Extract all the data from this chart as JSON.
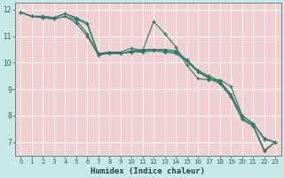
{
  "title": "",
  "xlabel": "Humidex (Indice chaleur)",
  "ylabel": "",
  "xlim": [
    -0.5,
    23.5
  ],
  "ylim": [
    6.5,
    12.25
  ],
  "yticks": [
    7,
    8,
    9,
    10,
    11,
    12
  ],
  "xticks": [
    0,
    1,
    2,
    3,
    4,
    5,
    6,
    7,
    8,
    9,
    10,
    11,
    12,
    13,
    14,
    15,
    16,
    17,
    18,
    19,
    20,
    21,
    22,
    23
  ],
  "outer_bg": "#c8e8e8",
  "plot_bg": "#f0d0d0",
  "grid_color": "#ffffff",
  "line_color": "#2a7a6a",
  "tick_color": "#2a6060",
  "label_color": "#1a4040",
  "lines": [
    [
      11.9,
      11.75,
      11.75,
      11.7,
      11.85,
      11.7,
      11.5,
      10.35,
      10.4,
      10.4,
      10.55,
      10.45,
      11.55,
      11.1,
      10.6,
      9.9,
      9.4,
      9.35,
      9.35,
      9.1,
      8.0,
      7.7,
      7.15,
      7.0
    ],
    [
      11.9,
      11.75,
      11.75,
      11.7,
      11.85,
      11.65,
      11.45,
      10.3,
      10.35,
      10.35,
      10.45,
      10.5,
      10.5,
      10.5,
      10.45,
      10.1,
      9.7,
      9.5,
      9.3,
      8.8,
      8.0,
      7.7,
      7.1,
      7.0
    ],
    [
      11.9,
      11.75,
      11.7,
      11.65,
      11.75,
      11.6,
      11.1,
      10.3,
      10.4,
      10.35,
      10.4,
      10.45,
      10.5,
      10.45,
      10.4,
      10.1,
      9.7,
      9.45,
      9.25,
      8.75,
      7.9,
      7.65,
      6.7,
      7.0
    ],
    [
      11.9,
      11.75,
      11.7,
      11.65,
      11.75,
      11.5,
      11.0,
      10.3,
      10.35,
      10.35,
      10.4,
      10.4,
      10.45,
      10.4,
      10.35,
      10.05,
      9.65,
      9.4,
      9.2,
      8.7,
      7.85,
      7.6,
      6.65,
      7.0
    ]
  ]
}
